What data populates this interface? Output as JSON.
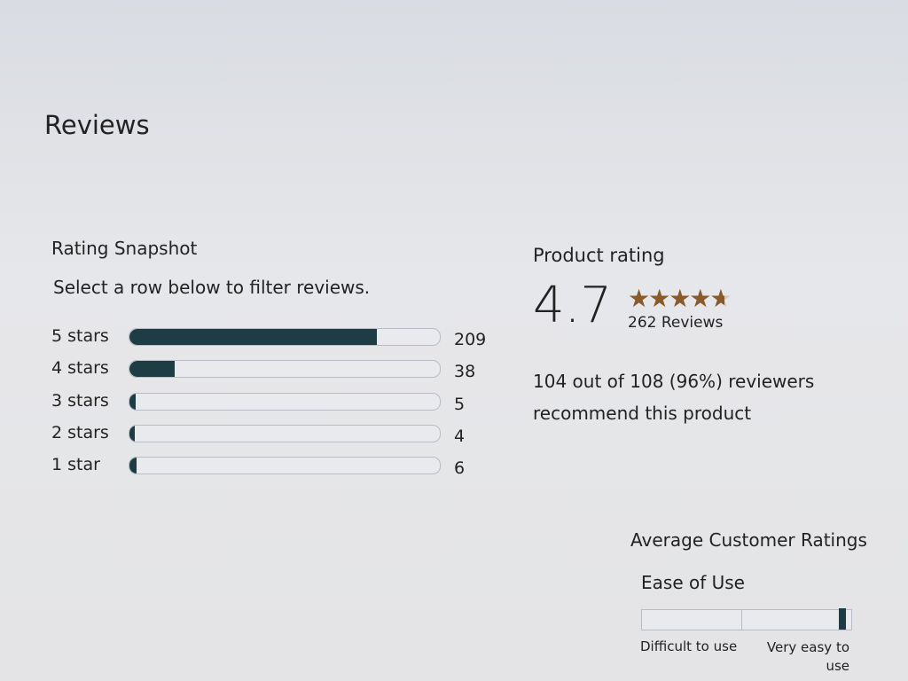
{
  "header": {
    "title": "Reviews"
  },
  "rating_snapshot": {
    "title": "Rating Snapshot",
    "instruction": "Select a row below to filter reviews.",
    "rows": [
      {
        "label": "5 stars",
        "count": 209
      },
      {
        "label": "4 stars",
        "count": 38
      },
      {
        "label": "3 stars",
        "count": 5
      },
      {
        "label": "2 stars",
        "count": 4
      },
      {
        "label": "1 star",
        "count": 6
      }
    ]
  },
  "product_rating": {
    "title": "Product rating",
    "score": 4.7,
    "reviews": {
      "value": 262,
      "label": "262 Reviews"
    },
    "recommendation": "104 out of 108 (96%) reviewers recommend this product"
  },
  "average_ratings": {
    "title": "Average Customer Ratings",
    "items": [
      {
        "label": "Ease of Use",
        "value": 4.9,
        "range": [
          1,
          5
        ],
        "min_label": "Difficult to use",
        "max_label": "Very easy to use"
      }
    ]
  }
}
